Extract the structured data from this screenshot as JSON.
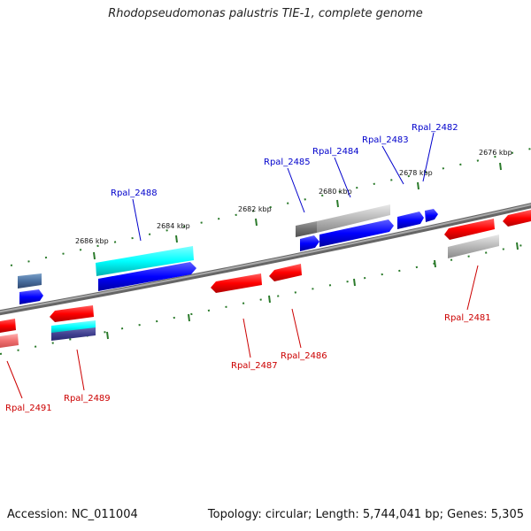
{
  "title": "Rhodopseudomonas palustris TIE-1, complete genome",
  "accession": "Accession: NC_011004",
  "summary": "Topology: circular; Length: 5,744,041 bp; Genes: 5,305",
  "ticks": [
    "2676 kbp",
    "2678 kbp",
    "2680 kbp",
    "2682 kbp",
    "2684 kbp",
    "2686 kbp"
  ],
  "genes_top": [
    "Rpal_2482",
    "Rpal_2483",
    "Rpal_2484",
    "Rpal_2485",
    "Rpal_2488"
  ],
  "genes_bottom": [
    "Rpal_2481",
    "Rpal_2486",
    "Rpal_2487",
    "Rpal_2489",
    "Rpal_2491"
  ],
  "colors": {
    "forward": "#0000ff",
    "reverse": "#ff0000",
    "cyan": "#00ffff",
    "backbone": "#808080",
    "tick": "#2a7a2a"
  }
}
